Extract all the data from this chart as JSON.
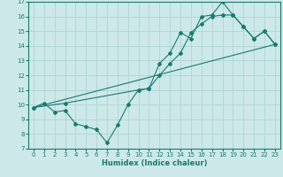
{
  "xlabel": "Humidex (Indice chaleur)",
  "background_color": "#cce8e8",
  "grid_color": "#aad0d0",
  "line_color": "#1a7a6e",
  "xlim": [
    -0.5,
    23.5
  ],
  "ylim": [
    7,
    17
  ],
  "xticks": [
    0,
    1,
    2,
    3,
    4,
    5,
    6,
    7,
    8,
    9,
    10,
    11,
    12,
    13,
    14,
    15,
    16,
    17,
    18,
    19,
    20,
    21,
    22,
    23
  ],
  "yticks": [
    7,
    8,
    9,
    10,
    11,
    12,
    13,
    14,
    15,
    16,
    17
  ],
  "line1_x": [
    0,
    1,
    2,
    3,
    4,
    5,
    6,
    7,
    8,
    9,
    10,
    11,
    12,
    13,
    14,
    15,
    16,
    17,
    18,
    19,
    20,
    21,
    22,
    23
  ],
  "line1_y": [
    9.8,
    10.1,
    9.5,
    9.6,
    8.7,
    8.5,
    8.3,
    7.4,
    8.6,
    10.0,
    11.0,
    11.1,
    12.8,
    13.5,
    14.9,
    14.5,
    16.0,
    16.1,
    17.0,
    16.1,
    15.3,
    14.5,
    15.0,
    14.1
  ],
  "line2_x": [
    0,
    3,
    10,
    11,
    12,
    13,
    14,
    15,
    16,
    17,
    18,
    19,
    20,
    21,
    22,
    23
  ],
  "line2_y": [
    9.8,
    10.1,
    11.0,
    11.1,
    12.0,
    12.8,
    13.5,
    14.9,
    15.5,
    16.0,
    16.1,
    16.1,
    15.3,
    14.5,
    15.0,
    14.1
  ],
  "line3_x": [
    0,
    23
  ],
  "line3_y": [
    9.8,
    14.1
  ]
}
